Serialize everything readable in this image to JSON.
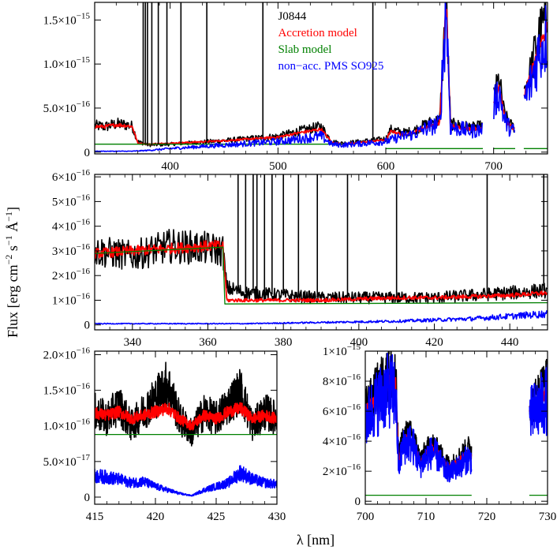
{
  "figure": {
    "ylabel_parts": [
      "Flux [erg cm",
      "−2",
      " s",
      "−1",
      " Å",
      "−1",
      "]"
    ],
    "xlabel": "λ [nm]"
  },
  "colors": {
    "observed": "#000000",
    "accretion": "#ff0000",
    "slab": "#008000",
    "pms": "#0000ff"
  },
  "chart_data": [
    {
      "type": "line",
      "id": "top",
      "xlim": [
        330,
        750
      ],
      "ylim": [
        -2e-17,
        1.7e-15
      ],
      "xticks": [
        {
          "v": 400,
          "label": "400"
        },
        {
          "v": 500,
          "label": "500"
        },
        {
          "v": 600,
          "label": "600"
        },
        {
          "v": 700,
          "label": "700"
        }
      ],
      "yticks": [
        {
          "v": 0,
          "m": "0",
          "e": ""
        },
        {
          "v": 5e-16,
          "m": "5.0×10",
          "e": "−16"
        },
        {
          "v": 1e-15,
          "m": "1.0×10",
          "e": "−15"
        },
        {
          "v": 1.5e-15,
          "m": "1.5×10",
          "e": "−15"
        }
      ],
      "legend": {
        "placement": "top-center",
        "entries": [
          {
            "label": "J0844",
            "color": "#000000"
          },
          {
            "label": "Accretion model",
            "color": "#ff0000"
          },
          {
            "label": "Slab model",
            "color": "#008000"
          },
          {
            "label": "non−acc. PMS SO925",
            "color": "#0000ff"
          }
        ]
      },
      "series": [
        {
          "key": "observed",
          "x": [
            330,
            340,
            350,
            360,
            365,
            370,
            380,
            400,
            450,
            500,
            520,
            540,
            550,
            560,
            600,
            605,
            615,
            625,
            640,
            650,
            656,
            660,
            680,
            690,
            693,
            700,
            705,
            710,
            715,
            720,
            723,
            728,
            735,
            740,
            745,
            750
          ],
          "y": [
            3e-16,
            2.9e-16,
            3.2e-16,
            3.1e-16,
            2.9e-16,
            1.2e-16,
            8e-17,
            9e-17,
            1.3e-16,
            1.8e-16,
            2.4e-16,
            2.9e-16,
            1.2e-16,
            1e-16,
            1.5e-16,
            2.6e-16,
            2.2e-16,
            2.4e-16,
            3.3e-16,
            3.6e-16,
            1.7e-15,
            3.2e-16,
            2.8e-16,
            3e-16,
            null,
            6.2e-16,
            8.3e-16,
            4.3e-16,
            3.2e-16,
            2.7e-16,
            null,
            6.8e-16,
            9.5e-16,
            1.26e-15,
            1.42e-15,
            1.55e-15
          ]
        },
        {
          "key": "accretion",
          "x": [
            330,
            340,
            350,
            360,
            365,
            370,
            380,
            400,
            450,
            500,
            520,
            540,
            550,
            560,
            600,
            605,
            615,
            625,
            640,
            650,
            656,
            660,
            680,
            690,
            693,
            700,
            705,
            710,
            715,
            720,
            723,
            728,
            735,
            740,
            745,
            750
          ],
          "y": [
            2.9e-16,
            2.9e-16,
            3.1e-16,
            3e-16,
            2.9e-16,
            1e-16,
            9e-17,
            1e-16,
            1.3e-16,
            1.7e-16,
            2.2e-16,
            2.6e-16,
            1.1e-16,
            9e-17,
            1.4e-16,
            2.4e-16,
            2e-16,
            2.2e-16,
            3e-16,
            3.3e-16,
            1.7e-15,
            3e-16,
            2.6e-16,
            2.8e-16,
            null,
            5.6e-16,
            7.6e-16,
            4e-16,
            3e-16,
            2.5e-16,
            null,
            6.2e-16,
            8.8e-16,
            1.15e-15,
            1.3e-15,
            1.4e-15
          ]
        },
        {
          "key": "slab",
          "x": [
            330,
            364,
            365,
            560,
            null,
            600,
            690,
            null,
            700,
            720,
            null,
            728,
            750
          ],
          "y": [
            9e-17,
            9e-17,
            9e-17,
            9e-17,
            null,
            4e-17,
            4e-17,
            null,
            4e-17,
            4e-17,
            null,
            4e-17,
            4e-17
          ]
        },
        {
          "key": "pms",
          "x": [
            330,
            360,
            365,
            380,
            400,
            450,
            500,
            540,
            550,
            560,
            600,
            615,
            625,
            640,
            650,
            656,
            660,
            680,
            690,
            693,
            700,
            705,
            710,
            715,
            720,
            723,
            728,
            735,
            740,
            745,
            750
          ],
          "y": [
            1e-17,
            1e-17,
            1e-17,
            2e-17,
            4e-17,
            8e-17,
            1.2e-16,
            1.8e-16,
            9e-17,
            8e-17,
            1.2e-16,
            1.8e-16,
            2e-16,
            2.8e-16,
            3.2e-16,
            1.7e-15,
            2.8e-16,
            2.4e-16,
            2.6e-16,
            null,
            5.2e-16,
            7e-16,
            3.7e-16,
            2.7e-16,
            2.3e-16,
            null,
            5.6e-16,
            8e-16,
            1.06e-15,
            1.22e-15,
            1.34e-15
          ]
        }
      ],
      "emission_lines": [
        375,
        377,
        379,
        383,
        389,
        397,
        410,
        434,
        486,
        588,
        656
      ]
    },
    {
      "type": "line",
      "id": "middle",
      "xlim": [
        330,
        450
      ],
      "ylim": [
        -2e-17,
        6.1e-16
      ],
      "xticks": [
        {
          "v": 340,
          "label": "340"
        },
        {
          "v": 360,
          "label": "360"
        },
        {
          "v": 380,
          "label": "380"
        },
        {
          "v": 400,
          "label": "400"
        },
        {
          "v": 420,
          "label": "420"
        },
        {
          "v": 440,
          "label": "440"
        }
      ],
      "yticks": [
        {
          "v": 0,
          "m": "0",
          "e": ""
        },
        {
          "v": 1e-16,
          "m": "1×10",
          "e": "−16"
        },
        {
          "v": 2e-16,
          "m": "2×10",
          "e": "−16"
        },
        {
          "v": 3e-16,
          "m": "3×10",
          "e": "−16"
        },
        {
          "v": 4e-16,
          "m": "4×10",
          "e": "−16"
        },
        {
          "v": 5e-16,
          "m": "5×10",
          "e": "−16"
        },
        {
          "v": 6e-16,
          "m": "6×10",
          "e": "−16"
        }
      ],
      "series": [
        {
          "key": "observed",
          "x": [
            330,
            340,
            350,
            360,
            364,
            365,
            370,
            380,
            390,
            400,
            410,
            420,
            430,
            440,
            450
          ],
          "y": [
            3e-16,
            2.8e-16,
            3.2e-16,
            3.1e-16,
            3e-16,
            1.5e-16,
            1.3e-16,
            1.2e-16,
            1.1e-16,
            1.1e-16,
            1.1e-16,
            1.1e-16,
            1.2e-16,
            1.3e-16,
            1.4e-16
          ]
        },
        {
          "key": "accretion",
          "x": [
            330,
            340,
            350,
            360,
            364,
            365,
            370,
            380,
            390,
            400,
            410,
            420,
            430,
            440,
            450
          ],
          "y": [
            2.9e-16,
            3e-16,
            3.1e-16,
            3.2e-16,
            3.2e-16,
            1e-16,
            1e-16,
            1e-16,
            1e-16,
            1.05e-16,
            1.1e-16,
            1.1e-16,
            1.15e-16,
            1.2e-16,
            1.3e-16
          ]
        },
        {
          "key": "slab",
          "x": [
            330,
            364,
            364.5,
            450
          ],
          "y": [
            2.9e-16,
            3.15e-16,
            8.5e-17,
            9e-17
          ]
        },
        {
          "key": "pms",
          "x": [
            330,
            350,
            370,
            390,
            410,
            430,
            440,
            450
          ],
          "y": [
            5e-18,
            5e-18,
            5e-18,
            1e-17,
            1.5e-17,
            2.5e-17,
            3.5e-17,
            4.5e-17
          ]
        }
      ],
      "emission_lines": [
        368,
        370,
        372,
        373,
        375,
        377,
        380,
        384,
        389,
        397,
        410,
        434,
        449
      ]
    },
    {
      "type": "line",
      "id": "bottom-left",
      "xlim": [
        415,
        430
      ],
      "ylim": [
        -1e-17,
        2.05e-16
      ],
      "xticks": [
        {
          "v": 415,
          "label": "415"
        },
        {
          "v": 420,
          "label": "420"
        },
        {
          "v": 425,
          "label": "425"
        },
        {
          "v": 430,
          "label": "430"
        }
      ],
      "yticks": [
        {
          "v": 0,
          "m": "0",
          "e": ""
        },
        {
          "v": 5e-17,
          "m": "5.0×10",
          "e": "−17"
        },
        {
          "v": 1e-16,
          "m": "1.0×10",
          "e": "−16"
        },
        {
          "v": 1.5e-16,
          "m": "1.5×10",
          "e": "−16"
        },
        {
          "v": 2e-16,
          "m": "2.0×10",
          "e": "−16"
        }
      ],
      "series": [
        {
          "key": "observed",
          "x": [
            415,
            416,
            417,
            418,
            419,
            420,
            421,
            422,
            423,
            424,
            425,
            426,
            427,
            428,
            429,
            430
          ],
          "y": [
            1.2e-16,
            1.1e-16,
            1.3e-16,
            1e-16,
            1.2e-16,
            1.4e-16,
            1.6e-16,
            1.1e-16,
            9e-17,
            1.2e-16,
            1.1e-16,
            1.3e-16,
            1.5e-16,
            1e-16,
            1.2e-16,
            1.1e-16
          ]
        },
        {
          "key": "accretion",
          "x": [
            415,
            416,
            417,
            418,
            419,
            420,
            421,
            422,
            423,
            424,
            425,
            426,
            427,
            428,
            429,
            430
          ],
          "y": [
            1.18e-16,
            1.15e-16,
            1.2e-16,
            1.1e-16,
            1.15e-16,
            1.2e-16,
            1.25e-16,
            1.1e-16,
            1e-16,
            1.15e-16,
            1.1e-16,
            1.2e-16,
            1.25e-16,
            1.1e-16,
            1.15e-16,
            1.1e-16
          ]
        },
        {
          "key": "slab",
          "x": [
            415,
            430
          ],
          "y": [
            8.8e-17,
            8.8e-17
          ]
        },
        {
          "key": "pms",
          "x": [
            415,
            416,
            417,
            418,
            419,
            420,
            421,
            422,
            423,
            424,
            425,
            426,
            427,
            428,
            429,
            430
          ],
          "y": [
            3e-17,
            2.8e-17,
            2.5e-17,
            2e-17,
            2.2e-17,
            1.5e-17,
            1e-17,
            5e-18,
            2e-18,
            1e-17,
            1.5e-17,
            2e-17,
            3.5e-17,
            2.5e-17,
            2e-17,
            1.8e-17
          ]
        }
      ],
      "emission_lines": []
    },
    {
      "type": "line",
      "id": "bottom-right",
      "xlim": [
        700,
        730
      ],
      "ylim": [
        -2e-17,
        1e-15
      ],
      "xticks": [
        {
          "v": 700,
          "label": "700"
        },
        {
          "v": 710,
          "label": "710"
        },
        {
          "v": 720,
          "label": "720"
        },
        {
          "v": 730,
          "label": "730"
        }
      ],
      "yticks": [
        {
          "v": 0,
          "m": "0",
          "e": ""
        },
        {
          "v": 2e-16,
          "m": "2×10",
          "e": "−16"
        },
        {
          "v": 4e-16,
          "m": "4×10",
          "e": "−16"
        },
        {
          "v": 6e-16,
          "m": "6×10",
          "e": "−16"
        },
        {
          "v": 8e-16,
          "m": "8×10",
          "e": "−16"
        },
        {
          "v": 1e-15,
          "m": "1×10",
          "e": "−15"
        }
      ],
      "series": [
        {
          "key": "observed",
          "x": [
            700,
            701,
            702,
            703,
            704,
            705,
            705.5,
            706,
            707,
            708,
            709,
            710,
            711,
            712,
            713,
            714,
            715,
            716,
            717,
            717.5,
            null,
            727,
            728,
            729,
            730
          ],
          "y": [
            6.2e-16,
            6.8e-16,
            7.6e-16,
            8.2e-16,
            8.6e-16,
            8.3e-16,
            2.8e-16,
            4e-16,
            4.6e-16,
            4.2e-16,
            2.8e-16,
            3.4e-16,
            3.8e-16,
            3.4e-16,
            2.8e-16,
            2.4e-16,
            2.8e-16,
            3.2e-16,
            3.6e-16,
            3.4e-16,
            null,
            6.2e-16,
            6.8e-16,
            7.5e-16,
            8e-16
          ]
        },
        {
          "key": "accretion",
          "x": [
            700,
            701,
            702,
            703,
            704,
            705,
            705.5,
            706,
            707,
            708,
            709,
            710,
            711,
            712,
            713,
            714,
            715,
            716,
            717,
            717.5,
            null,
            727,
            728,
            729,
            730
          ],
          "y": [
            5.9e-16,
            6.5e-16,
            7.1e-16,
            7.6e-16,
            7.9e-16,
            7.7e-16,
            2.5e-16,
            3.7e-16,
            4.3e-16,
            3.9e-16,
            2.6e-16,
            3.2e-16,
            3.6e-16,
            3.2e-16,
            2.6e-16,
            2.3e-16,
            2.6e-16,
            2.9e-16,
            3.2e-16,
            3e-16,
            null,
            6e-16,
            6.4e-16,
            6.8e-16,
            7.2e-16
          ]
        },
        {
          "key": "slab",
          "x": [
            700,
            717.5,
            null,
            727,
            730
          ],
          "y": [
            4e-17,
            4e-17,
            null,
            4e-17,
            4e-17
          ]
        },
        {
          "key": "pms",
          "x": [
            700,
            701,
            702,
            703,
            704,
            705,
            705.5,
            706,
            707,
            708,
            709,
            710,
            711,
            712,
            713,
            714,
            715,
            716,
            717,
            717.5,
            null,
            727,
            728,
            729,
            730
          ],
          "y": [
            5.4e-16,
            6e-16,
            6.6e-16,
            7.1e-16,
            7.4e-16,
            7.2e-16,
            2e-16,
            3.4e-16,
            4e-16,
            3.6e-16,
            2.3e-16,
            2.9e-16,
            3.3e-16,
            2.9e-16,
            2.1e-16,
            1.9e-16,
            2.2e-16,
            2.5e-16,
            2.9e-16,
            2.7e-16,
            null,
            5.6e-16,
            6e-16,
            6.4e-16,
            6.8e-16
          ]
        }
      ],
      "emission_lines": []
    }
  ]
}
